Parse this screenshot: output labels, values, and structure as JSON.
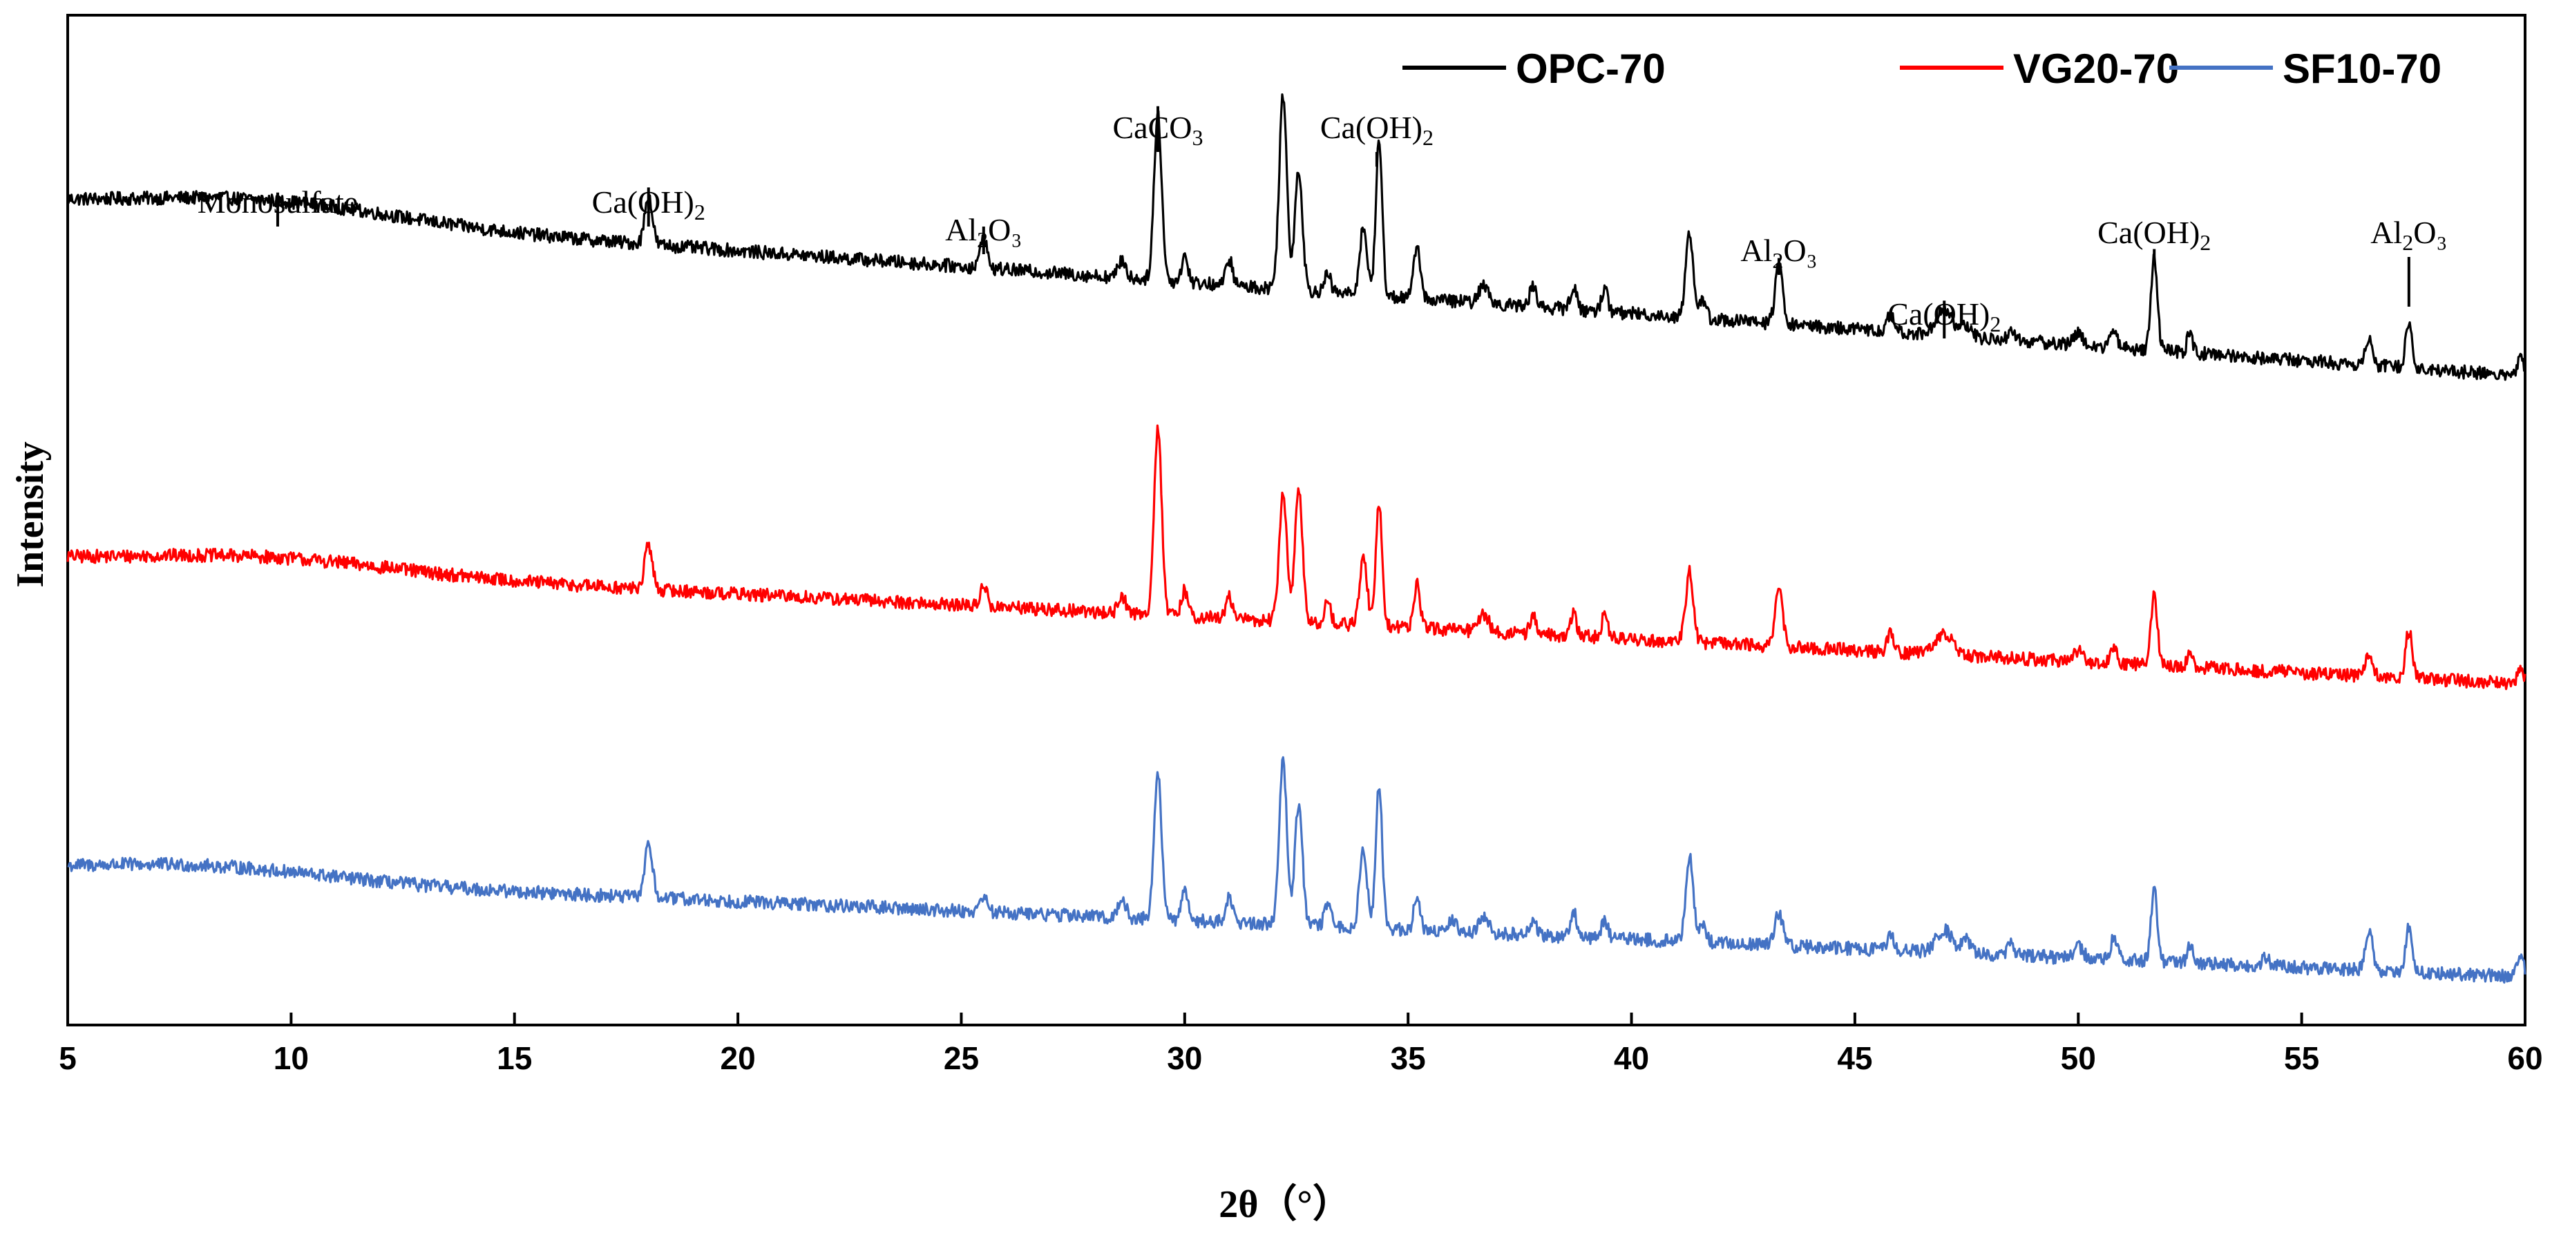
{
  "chart_data": {
    "type": "line",
    "title": "",
    "xlabel": "2θ（°）",
    "ylabel": "Intensity",
    "xlim": [
      5,
      60
    ],
    "xticks": [
      5,
      10,
      15,
      20,
      25,
      30,
      35,
      40,
      45,
      50,
      55,
      60
    ],
    "yticks_shown": false,
    "legend_position": "top-right",
    "series": [
      {
        "name": "OPC-70",
        "color": "#000000",
        "baseline_start": 100,
        "baseline_end": 22,
        "hump": {
          "center": 9.5,
          "width": 4,
          "height": 8
        },
        "noise": 3,
        "peaks": [
          [
            18.0,
            22,
            0.12
          ],
          [
            25.5,
            15,
            0.1
          ],
          [
            28.6,
            8,
            0.12
          ],
          [
            29.4,
            75,
            0.12
          ],
          [
            30.0,
            12,
            0.1
          ],
          [
            31.0,
            12,
            0.1
          ],
          [
            32.2,
            88,
            0.12
          ],
          [
            32.55,
            55,
            0.12
          ],
          [
            33.2,
            8,
            0.1
          ],
          [
            34.0,
            30,
            0.12
          ],
          [
            34.35,
            70,
            0.1
          ],
          [
            35.2,
            25,
            0.1
          ],
          [
            36.7,
            8,
            0.15
          ],
          [
            37.8,
            10,
            0.1
          ],
          [
            38.7,
            10,
            0.1
          ],
          [
            39.4,
            10,
            0.1
          ],
          [
            41.3,
            38,
            0.12
          ],
          [
            41.6,
            8,
            0.1
          ],
          [
            43.3,
            26,
            0.12
          ],
          [
            45.8,
            8,
            0.1
          ],
          [
            47.0,
            12,
            0.25
          ],
          [
            47.5,
            5,
            0.15
          ],
          [
            48.5,
            5,
            0.1
          ],
          [
            50.0,
            5,
            0.15
          ],
          [
            50.8,
            8,
            0.1
          ],
          [
            51.7,
            42,
            0.1
          ],
          [
            52.5,
            10,
            0.08
          ],
          [
            56.5,
            12,
            0.12
          ],
          [
            57.4,
            22,
            0.1
          ],
          [
            59.9,
            8,
            0.1
          ]
        ]
      },
      {
        "name": "VG20-70",
        "color": "#ff0000",
        "baseline_start": 70,
        "baseline_end": 14,
        "hump": {
          "center": 9.5,
          "width": 4,
          "height": 6
        },
        "noise": 3,
        "peaks": [
          [
            18.0,
            20,
            0.12
          ],
          [
            25.5,
            10,
            0.1
          ],
          [
            28.6,
            8,
            0.12
          ],
          [
            29.4,
            85,
            0.12
          ],
          [
            30.0,
            12,
            0.1
          ],
          [
            31.0,
            10,
            0.1
          ],
          [
            32.2,
            58,
            0.12
          ],
          [
            32.55,
            60,
            0.12
          ],
          [
            33.2,
            10,
            0.1
          ],
          [
            34.0,
            30,
            0.12
          ],
          [
            34.35,
            55,
            0.1
          ],
          [
            35.2,
            20,
            0.1
          ],
          [
            36.7,
            8,
            0.15
          ],
          [
            37.8,
            8,
            0.1
          ],
          [
            38.7,
            10,
            0.1
          ],
          [
            39.4,
            10,
            0.1
          ],
          [
            41.3,
            32,
            0.12
          ],
          [
            43.3,
            25,
            0.12
          ],
          [
            45.8,
            8,
            0.1
          ],
          [
            47.0,
            10,
            0.25
          ],
          [
            50.0,
            5,
            0.15
          ],
          [
            50.8,
            6,
            0.1
          ],
          [
            51.7,
            32,
            0.1
          ],
          [
            52.5,
            8,
            0.08
          ],
          [
            56.5,
            10,
            0.12
          ],
          [
            57.4,
            22,
            0.1
          ],
          [
            59.9,
            8,
            0.1
          ]
        ]
      },
      {
        "name": "SF10-70",
        "color": "#4472c4",
        "baseline_start": 55,
        "baseline_end": 8,
        "hump": {
          "center": 8.0,
          "width": 4,
          "height": 6
        },
        "noise": 3,
        "peaks": [
          [
            18.0,
            25,
            0.12
          ],
          [
            25.5,
            8,
            0.1
          ],
          [
            28.6,
            8,
            0.12
          ],
          [
            29.4,
            65,
            0.12
          ],
          [
            30.0,
            15,
            0.1
          ],
          [
            31.0,
            12,
            0.1
          ],
          [
            32.2,
            75,
            0.12
          ],
          [
            32.55,
            55,
            0.12
          ],
          [
            33.2,
            10,
            0.1
          ],
          [
            34.0,
            35,
            0.12
          ],
          [
            34.35,
            65,
            0.1
          ],
          [
            35.2,
            15,
            0.1
          ],
          [
            36.0,
            6,
            0.1
          ],
          [
            36.7,
            8,
            0.15
          ],
          [
            37.8,
            6,
            0.1
          ],
          [
            38.7,
            12,
            0.1
          ],
          [
            39.4,
            8,
            0.1
          ],
          [
            41.3,
            38,
            0.12
          ],
          [
            41.6,
            8,
            0.1
          ],
          [
            43.3,
            15,
            0.12
          ],
          [
            45.8,
            8,
            0.1
          ],
          [
            47.0,
            10,
            0.25
          ],
          [
            47.5,
            6,
            0.15
          ],
          [
            48.5,
            5,
            0.1
          ],
          [
            50.0,
            5,
            0.15
          ],
          [
            50.8,
            10,
            0.1
          ],
          [
            51.7,
            32,
            0.1
          ],
          [
            52.5,
            8,
            0.08
          ],
          [
            54.2,
            4,
            0.1
          ],
          [
            56.5,
            18,
            0.12
          ],
          [
            57.4,
            20,
            0.1
          ],
          [
            59.9,
            10,
            0.1
          ]
        ]
      }
    ],
    "annotations": [
      {
        "base": "Monosulfate",
        "sub": "",
        "tail": "",
        "x": 9.7
      },
      {
        "base": "Ca(OH)",
        "sub": "2",
        "tail": "",
        "x": 18.0
      },
      {
        "base": "Al",
        "sub": "2",
        "tail": "O₃",
        "x": 25.5
      },
      {
        "base": "CaCO",
        "sub": "3",
        "tail": "",
        "x": 29.4
      },
      {
        "base": "Ca(OH)",
        "sub": "2",
        "tail": "",
        "x": 34.3
      },
      {
        "base": "Al",
        "sub": "2",
        "tail": "O₃",
        "x": 43.3
      },
      {
        "base": "Ca(OH)",
        "sub": "2",
        "tail": "",
        "x": 47.0
      },
      {
        "base": "Ca(OH)",
        "sub": "2",
        "tail": "",
        "x": 51.7
      },
      {
        "base": "Al",
        "sub": "2",
        "tail": "O₃",
        "x": 57.4
      }
    ]
  }
}
